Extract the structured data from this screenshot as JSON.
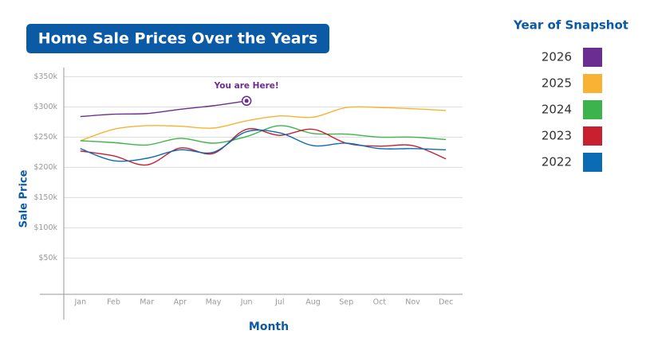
{
  "chart_data": {
    "type": "line",
    "title": "Home Sale Prices Over the Years",
    "x_label": "Month",
    "y_label": "Sale Price",
    "annotation": "You are Here!",
    "legend_title": "Year of Snapshot",
    "legend": "right",
    "grid": true,
    "categories": [
      "Jan",
      "Feb",
      "Mar",
      "Apr",
      "May",
      "Jun",
      "Jul",
      "Aug",
      "Sep",
      "Oct",
      "Nov",
      "Dec"
    ],
    "ylim": [
      -10000,
      365000
    ],
    "yticks": [
      {
        "value": 50000,
        "label": "$50k"
      },
      {
        "value": 100000,
        "label": "$100k"
      },
      {
        "value": 150000,
        "label": "$150k"
      },
      {
        "value": 200000,
        "label": "$200k"
      },
      {
        "value": 250000,
        "label": "$250k"
      },
      {
        "value": 300000,
        "label": "$300k"
      },
      {
        "value": 350000,
        "label": "$350k"
      }
    ],
    "series": [
      {
        "name": "2026",
        "color": "#6b2d91",
        "values": [
          284000,
          288000,
          289000,
          296000,
          302000,
          310000,
          null,
          null,
          null,
          null,
          null,
          null
        ]
      },
      {
        "name": "2025",
        "color": "#f9b233",
        "values": [
          244000,
          263000,
          269000,
          268000,
          265000,
          277000,
          285000,
          283000,
          299000,
          299000,
          297000,
          294000
        ]
      },
      {
        "name": "2024",
        "color": "#3cb44b",
        "values": [
          244000,
          241000,
          237000,
          248000,
          240000,
          251000,
          269000,
          256000,
          255000,
          250000,
          250000,
          246000
        ]
      },
      {
        "name": "2023",
        "color": "#c8202f",
        "values": [
          227000,
          219000,
          204000,
          232000,
          223000,
          263000,
          253000,
          263000,
          240000,
          235000,
          236000,
          214000
        ]
      },
      {
        "name": "2022",
        "color": "#0b6bb5",
        "values": [
          231000,
          211000,
          215000,
          229000,
          225000,
          259000,
          257000,
          236000,
          240000,
          231000,
          231000,
          229000
        ]
      }
    ]
  }
}
